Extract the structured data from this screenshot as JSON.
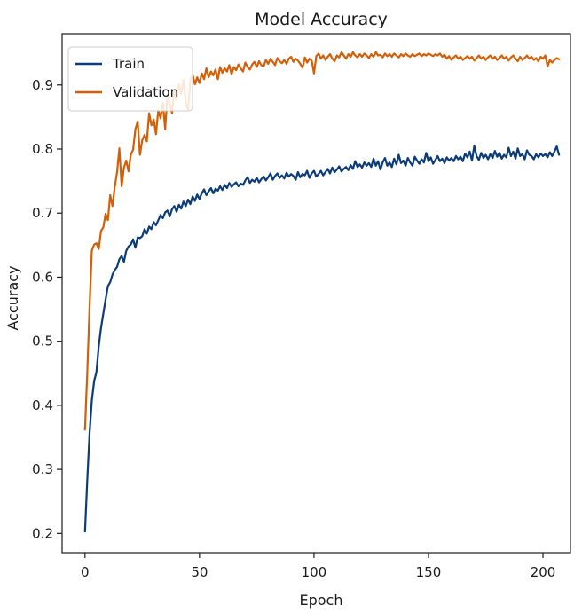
{
  "chart_data": {
    "type": "line",
    "title": "Model Accuracy",
    "xlabel": "Epoch",
    "ylabel": "Accuracy",
    "xlim": [
      -10,
      212
    ],
    "ylim": [
      0.17,
      0.98
    ],
    "x_ticks": [
      0,
      50,
      100,
      150,
      200
    ],
    "y_ticks": [
      0.2,
      0.3,
      0.4,
      0.5,
      0.6,
      0.7,
      0.8,
      0.9
    ],
    "grid": false,
    "legend_position": "top-left",
    "x": [
      0,
      1,
      2,
      3,
      4,
      5,
      6,
      7,
      8,
      9,
      10,
      11,
      12,
      13,
      14,
      15,
      16,
      17,
      18,
      19,
      20,
      21,
      22,
      23,
      24,
      25,
      26,
      27,
      28,
      29,
      30,
      31,
      32,
      33,
      34,
      35,
      36,
      37,
      38,
      39,
      40,
      41,
      42,
      43,
      44,
      45,
      46,
      47,
      48,
      49,
      50,
      51,
      52,
      53,
      54,
      55,
      56,
      57,
      58,
      59,
      60,
      61,
      62,
      63,
      64,
      65,
      66,
      67,
      68,
      69,
      70,
      71,
      72,
      73,
      74,
      75,
      76,
      77,
      78,
      79,
      80,
      81,
      82,
      83,
      84,
      85,
      86,
      87,
      88,
      89,
      90,
      91,
      92,
      93,
      94,
      95,
      96,
      97,
      98,
      99,
      100,
      101,
      102,
      103,
      104,
      105,
      106,
      107,
      108,
      109,
      110,
      111,
      112,
      113,
      114,
      115,
      116,
      117,
      118,
      119,
      120,
      121,
      122,
      123,
      124,
      125,
      126,
      127,
      128,
      129,
      130,
      131,
      132,
      133,
      134,
      135,
      136,
      137,
      138,
      139,
      140,
      141,
      142,
      143,
      144,
      145,
      146,
      147,
      148,
      149,
      150,
      151,
      152,
      153,
      154,
      155,
      156,
      157,
      158,
      159,
      160,
      161,
      162,
      163,
      164,
      165,
      166,
      167,
      168,
      169,
      170,
      171,
      172,
      173,
      174,
      175,
      176,
      177,
      178,
      179,
      180,
      181,
      182,
      183,
      184,
      185,
      186,
      187,
      188,
      189,
      190,
      191,
      192,
      193,
      194,
      195,
      196,
      197,
      198,
      199,
      200,
      201,
      202,
      203,
      204,
      205,
      206,
      207
    ],
    "series": [
      {
        "name": "Train",
        "color": "#0b3c78",
        "values": [
          0.203,
          0.284,
          0.356,
          0.408,
          0.438,
          0.452,
          0.492,
          0.521,
          0.543,
          0.565,
          0.586,
          0.592,
          0.604,
          0.611,
          0.616,
          0.628,
          0.633,
          0.624,
          0.641,
          0.648,
          0.651,
          0.659,
          0.646,
          0.662,
          0.661,
          0.664,
          0.675,
          0.668,
          0.679,
          0.675,
          0.686,
          0.681,
          0.689,
          0.697,
          0.692,
          0.701,
          0.704,
          0.695,
          0.706,
          0.711,
          0.702,
          0.713,
          0.707,
          0.718,
          0.711,
          0.721,
          0.714,
          0.726,
          0.719,
          0.729,
          0.722,
          0.731,
          0.737,
          0.728,
          0.734,
          0.739,
          0.731,
          0.738,
          0.735,
          0.742,
          0.736,
          0.744,
          0.739,
          0.747,
          0.741,
          0.745,
          0.748,
          0.742,
          0.746,
          0.744,
          0.751,
          0.756,
          0.747,
          0.752,
          0.749,
          0.755,
          0.748,
          0.753,
          0.757,
          0.751,
          0.756,
          0.762,
          0.752,
          0.758,
          0.762,
          0.755,
          0.759,
          0.754,
          0.763,
          0.757,
          0.761,
          0.758,
          0.752,
          0.764,
          0.756,
          0.761,
          0.759,
          0.766,
          0.755,
          0.762,
          0.766,
          0.757,
          0.761,
          0.766,
          0.759,
          0.764,
          0.769,
          0.762,
          0.771,
          0.764,
          0.768,
          0.773,
          0.765,
          0.769,
          0.772,
          0.767,
          0.775,
          0.769,
          0.781,
          0.772,
          0.776,
          0.771,
          0.779,
          0.774,
          0.778,
          0.772,
          0.785,
          0.774,
          0.781,
          0.768,
          0.779,
          0.786,
          0.774,
          0.779,
          0.772,
          0.785,
          0.776,
          0.791,
          0.778,
          0.782,
          0.774,
          0.786,
          0.779,
          0.774,
          0.788,
          0.782,
          0.777,
          0.784,
          0.779,
          0.794,
          0.781,
          0.787,
          0.777,
          0.783,
          0.789,
          0.781,
          0.785,
          0.778,
          0.787,
          0.782,
          0.786,
          0.781,
          0.789,
          0.784,
          0.788,
          0.781,
          0.793,
          0.787,
          0.796,
          0.782,
          0.805,
          0.789,
          0.783,
          0.794,
          0.786,
          0.791,
          0.784,
          0.792,
          0.786,
          0.797,
          0.788,
          0.794,
          0.785,
          0.791,
          0.787,
          0.802,
          0.789,
          0.796,
          0.785,
          0.801,
          0.789,
          0.792,
          0.784,
          0.798,
          0.791,
          0.789,
          0.784,
          0.792,
          0.787,
          0.793,
          0.789,
          0.792,
          0.787,
          0.795,
          0.789,
          0.796,
          0.804,
          0.791
        ]
      },
      {
        "name": "Validation",
        "color": "#d45f07",
        "values": [
          0.362,
          0.452,
          0.553,
          0.642,
          0.651,
          0.653,
          0.644,
          0.672,
          0.678,
          0.699,
          0.689,
          0.728,
          0.711,
          0.741,
          0.764,
          0.801,
          0.742,
          0.771,
          0.782,
          0.765,
          0.791,
          0.799,
          0.831,
          0.843,
          0.791,
          0.814,
          0.822,
          0.812,
          0.856,
          0.837,
          0.846,
          0.823,
          0.861,
          0.848,
          0.873,
          0.831,
          0.884,
          0.872,
          0.856,
          0.892,
          0.876,
          0.901,
          0.886,
          0.908,
          0.872,
          0.861,
          0.907,
          0.916,
          0.901,
          0.912,
          0.903,
          0.918,
          0.909,
          0.926,
          0.912,
          0.921,
          0.915,
          0.924,
          0.909,
          0.928,
          0.919,
          0.926,
          0.921,
          0.931,
          0.917,
          0.928,
          0.923,
          0.932,
          0.926,
          0.921,
          0.935,
          0.928,
          0.924,
          0.932,
          0.936,
          0.928,
          0.937,
          0.931,
          0.929,
          0.939,
          0.933,
          0.941,
          0.936,
          0.931,
          0.942,
          0.937,
          0.934,
          0.939,
          0.933,
          0.941,
          0.944,
          0.936,
          0.941,
          0.938,
          0.933,
          0.927,
          0.943,
          0.935,
          0.941,
          0.938,
          0.918,
          0.945,
          0.949,
          0.941,
          0.946,
          0.939,
          0.944,
          0.948,
          0.941,
          0.937,
          0.946,
          0.943,
          0.951,
          0.946,
          0.941,
          0.948,
          0.944,
          0.951,
          0.946,
          0.943,
          0.948,
          0.944,
          0.949,
          0.946,
          0.942,
          0.948,
          0.944,
          0.951,
          0.946,
          0.947,
          0.943,
          0.949,
          0.945,
          0.948,
          0.944,
          0.949,
          0.946,
          0.943,
          0.948,
          0.945,
          0.949,
          0.946,
          0.944,
          0.948,
          0.945,
          0.947,
          0.949,
          0.945,
          0.948,
          0.946,
          0.949,
          0.947,
          0.945,
          0.948,
          0.946,
          0.949,
          0.944,
          0.947,
          0.941,
          0.945,
          0.939,
          0.943,
          0.946,
          0.941,
          0.944,
          0.939,
          0.942,
          0.945,
          0.941,
          0.944,
          0.938,
          0.942,
          0.946,
          0.941,
          0.944,
          0.939,
          0.943,
          0.946,
          0.941,
          0.944,
          0.939,
          0.942,
          0.946,
          0.941,
          0.944,
          0.938,
          0.943,
          0.946,
          0.941,
          0.937,
          0.944,
          0.939,
          0.942,
          0.946,
          0.941,
          0.944,
          0.939,
          0.942,
          0.937,
          0.944,
          0.941,
          0.946,
          0.929,
          0.939,
          0.935,
          0.939,
          0.942,
          0.94
        ]
      }
    ]
  }
}
